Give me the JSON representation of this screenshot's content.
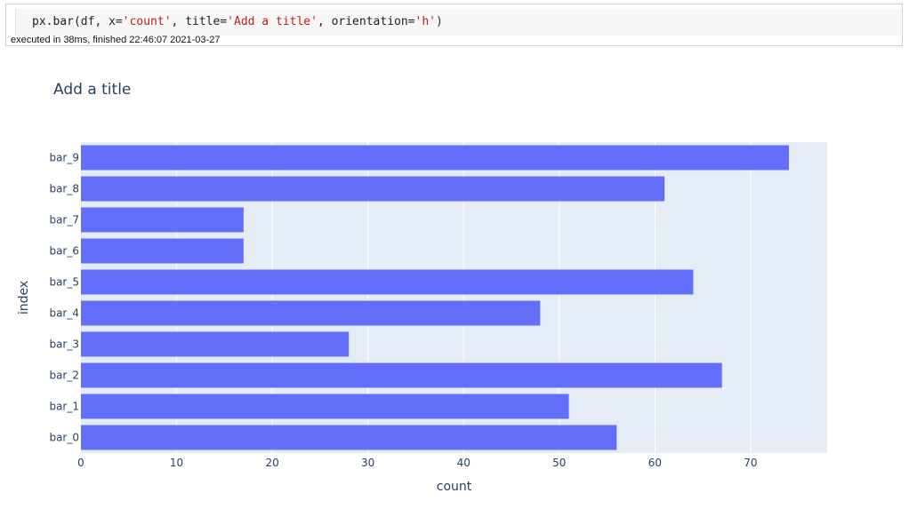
{
  "notebook_cell": {
    "code": {
      "fn": "px.bar(df, x=",
      "x_arg": "'count'",
      "sep1": ", title=",
      "title_arg": "'Add a title'",
      "sep2": ", orientation=",
      "orient_arg": "'h'",
      "end": ")"
    },
    "exec_status": "executed in 38ms, finished 22:46:07 2021-03-27"
  },
  "colors": {
    "bar": "#636efa",
    "plot_bg": "#e5ecf6",
    "text": "#2a3f5f"
  },
  "chart_data": {
    "type": "bar",
    "orientation": "h",
    "title": "Add a title",
    "xlabel": "count",
    "ylabel": "index",
    "categories": [
      "bar_0",
      "bar_1",
      "bar_2",
      "bar_3",
      "bar_4",
      "bar_5",
      "bar_6",
      "bar_7",
      "bar_8",
      "bar_9"
    ],
    "values": [
      56,
      51,
      67,
      28,
      48,
      64,
      17,
      17,
      61,
      74
    ],
    "xlim": [
      0,
      78
    ],
    "xticks": [
      0,
      10,
      20,
      30,
      40,
      50,
      60,
      70
    ],
    "grid": true
  }
}
